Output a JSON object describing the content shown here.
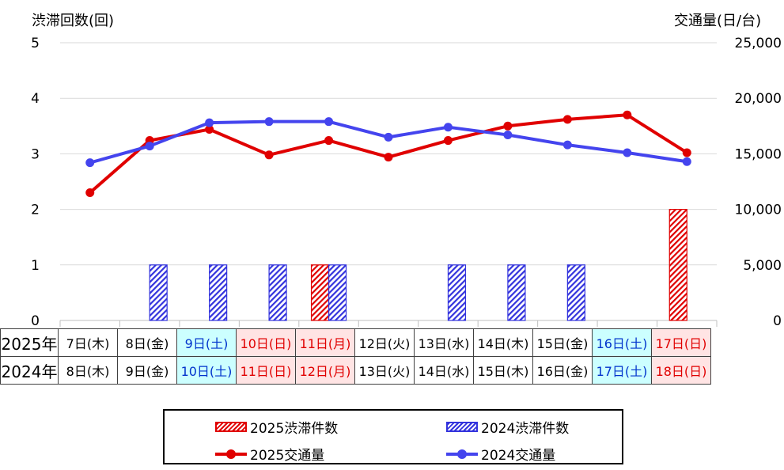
{
  "chart_data": {
    "type": "bar+line",
    "left_axis_title": "渋滞回数(回)",
    "right_axis_title": "交通量(日/台)",
    "left_ylim": [
      0,
      5
    ],
    "left_ticks": [
      "5",
      "4",
      "3",
      "2",
      "1",
      "0"
    ],
    "right_ylim": [
      0,
      25000
    ],
    "right_ticks": [
      "25,000",
      "20,000",
      "15,000",
      "10,000",
      "5,000",
      "0"
    ],
    "year_labels": [
      "2025年",
      "2024年"
    ],
    "categories_2025": [
      "7日(木)",
      "8日(金)",
      "9日(土)",
      "10日(日)",
      "11日(月)",
      "12日(火)",
      "13日(水)",
      "14日(木)",
      "15日(金)",
      "16日(土)",
      "17日(日)"
    ],
    "categories_2024": [
      "8日(木)",
      "9日(金)",
      "10日(土)",
      "11日(日)",
      "12日(月)",
      "13日(火)",
      "14日(水)",
      "15日(木)",
      "16日(金)",
      "17日(土)",
      "18日(日)"
    ],
    "day_types": [
      "wd",
      "wd",
      "sat",
      "sun",
      "sun",
      "wd",
      "wd",
      "wd",
      "wd",
      "sat",
      "sun"
    ],
    "series": [
      {
        "name": "2025渋滞件数",
        "kind": "bar",
        "axis": "left",
        "color": "#e00000",
        "values": [
          0,
          0,
          0,
          0,
          1,
          0,
          0,
          0,
          0,
          0,
          2
        ]
      },
      {
        "name": "2024渋滞件数",
        "kind": "bar",
        "axis": "left",
        "color": "#3333dd",
        "values": [
          0,
          1,
          1,
          1,
          1,
          0,
          1,
          1,
          1,
          0,
          0
        ]
      },
      {
        "name": "2025交通量",
        "kind": "line",
        "axis": "right",
        "color": "#e00000",
        "values": [
          11500,
          16200,
          17200,
          14900,
          16200,
          14700,
          16200,
          17500,
          18100,
          18500,
          15100
        ]
      },
      {
        "name": "2024交通量",
        "kind": "line",
        "axis": "right",
        "color": "#4444ee",
        "values": [
          14200,
          15700,
          17800,
          17900,
          17900,
          16500,
          17400,
          16700,
          15800,
          15100,
          14300
        ]
      }
    ]
  },
  "legend": {
    "bar_2025": "2025渋滞件数",
    "bar_2024": "2024渋滞件数",
    "line_2025": "2025交通量",
    "line_2024": "2024交通量"
  }
}
